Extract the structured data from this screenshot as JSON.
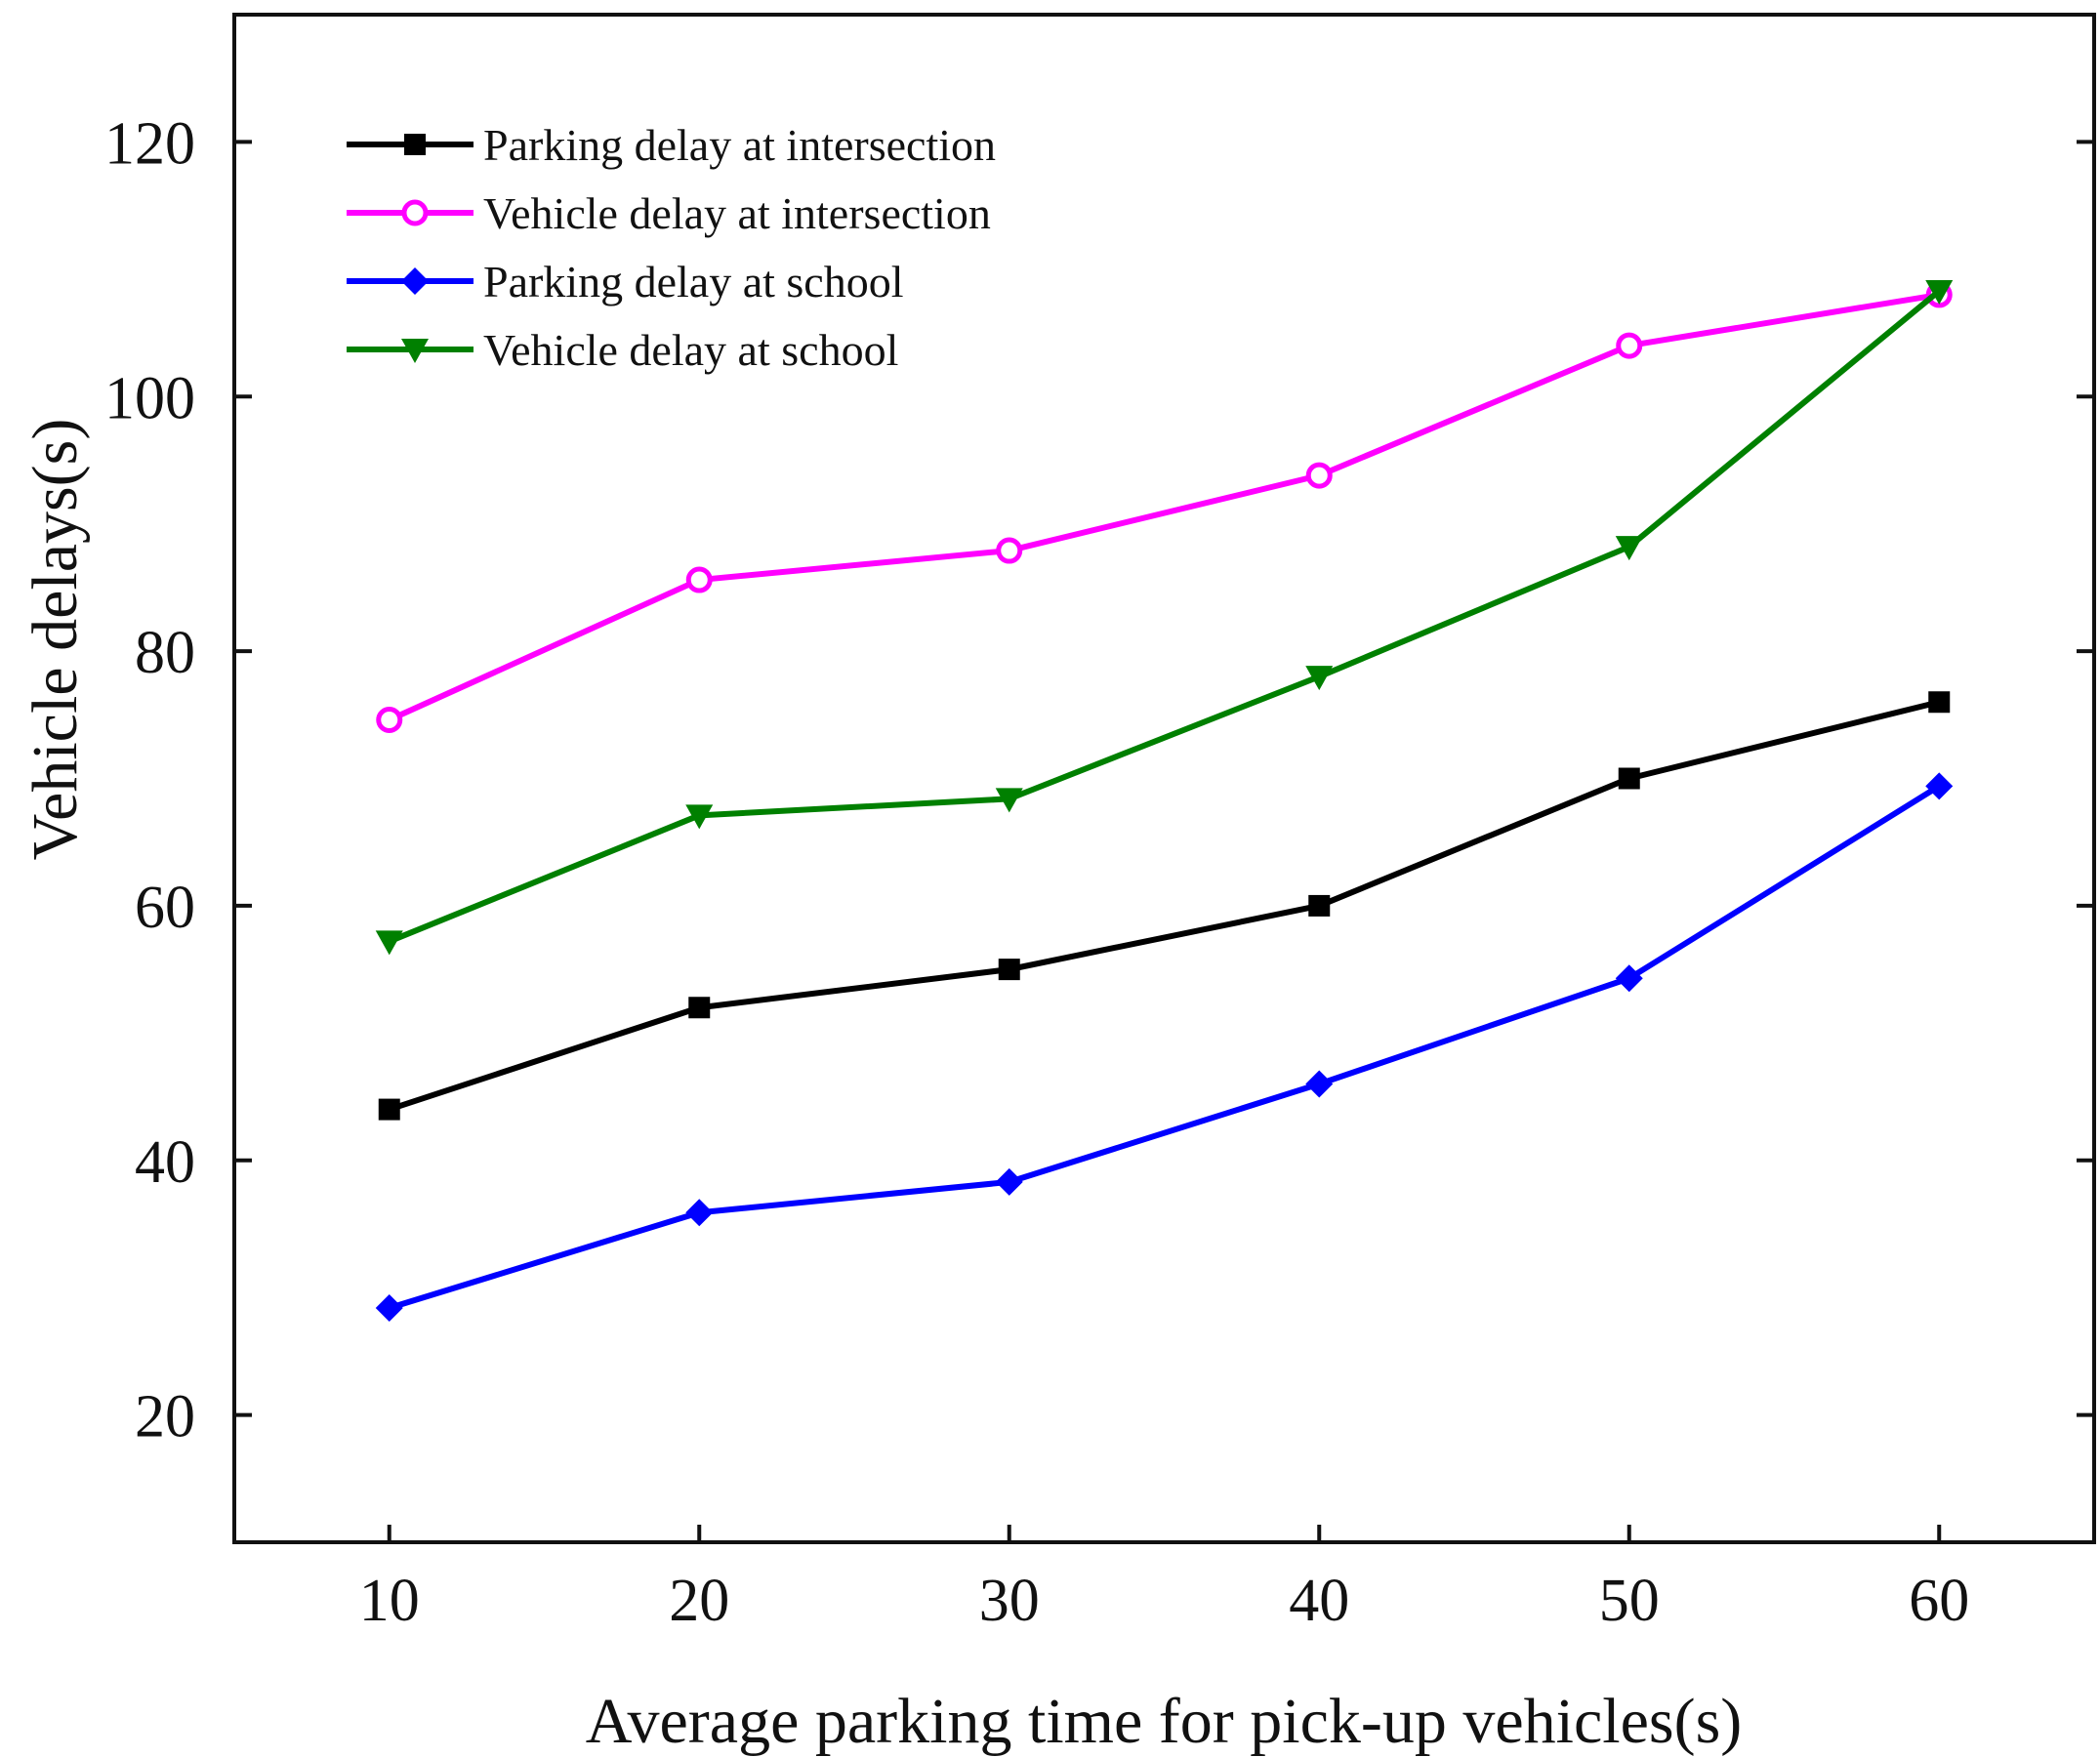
{
  "chart_data": {
    "type": "line",
    "title": "",
    "xlabel": "Average parking time for pick-up vehicles(s)",
    "ylabel": "Vehicle delays(s)",
    "x": [
      10,
      20,
      30,
      40,
      50,
      60
    ],
    "xlim": [
      5,
      65
    ],
    "ylim": [
      10,
      130
    ],
    "xticks": [
      10,
      20,
      30,
      40,
      50,
      60
    ],
    "yticks": [
      20,
      40,
      60,
      80,
      100,
      120
    ],
    "grid": false,
    "legend_position": "top-left",
    "series": [
      {
        "name": "Parking delay at intersection",
        "color": "#000000",
        "marker": "square",
        "values": [
          44,
          52,
          55,
          60,
          70,
          76
        ]
      },
      {
        "name": "Vehicle delay at intersection",
        "color": "#ff00ff",
        "marker": "circle",
        "values": [
          74.6,
          85.6,
          87.9,
          93.8,
          104,
          108
        ]
      },
      {
        "name": "Parking delay at school",
        "color": "#0000ff",
        "marker": "diamond",
        "values": [
          28.4,
          35.9,
          38.3,
          46,
          54.3,
          69.4
        ]
      },
      {
        "name": "Vehicle delay at school",
        "color": "#008000",
        "marker": "triangle-down",
        "values": [
          57.2,
          67.1,
          68.4,
          78,
          88.2,
          108.3
        ]
      }
    ]
  }
}
